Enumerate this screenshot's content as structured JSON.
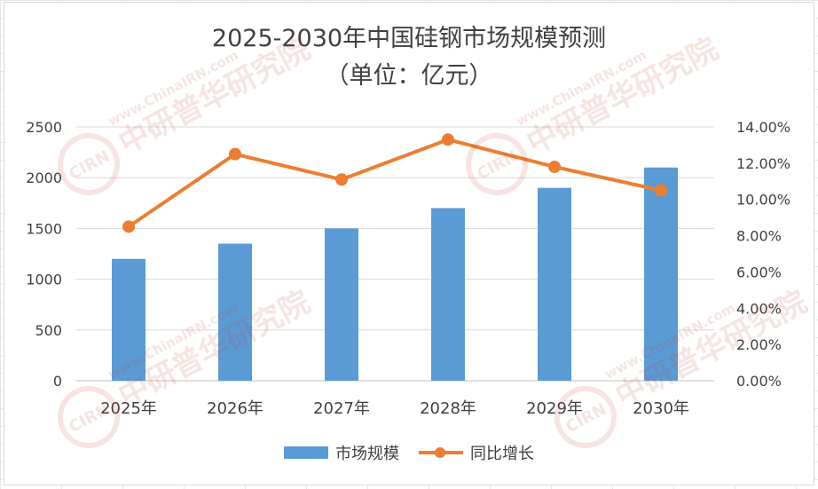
{
  "chart_data": {
    "type": "bar",
    "title": "2025-2030年中国硅钢市场规模预测",
    "subtitle": "（单位：亿元）",
    "categories": [
      "2025年",
      "2026年",
      "2027年",
      "2028年",
      "2029年",
      "2030年"
    ],
    "series": [
      {
        "name": "市场规模",
        "type": "bar",
        "axis": "left",
        "color": "#5b9bd5",
        "values": [
          1200,
          1350,
          1500,
          1700,
          1900,
          2100
        ]
      },
      {
        "name": "同比增长",
        "type": "line",
        "axis": "right",
        "color": "#ed7d31",
        "values": [
          0.085,
          0.125,
          0.111,
          0.133,
          0.118,
          0.105
        ]
      }
    ],
    "y_left": {
      "min": 0,
      "max": 2500,
      "ticks": [
        "0",
        "500",
        "1000",
        "1500",
        "2000",
        "2500"
      ]
    },
    "y_right": {
      "min": 0,
      "max": 0.14,
      "ticks": [
        "0.00%",
        "2.00%",
        "4.00%",
        "6.00%",
        "8.00%",
        "10.00%",
        "12.00%",
        "14.00%"
      ]
    },
    "legend_position": "bottom",
    "grid": true
  },
  "watermark": {
    "text_cn": "中研普华研究院",
    "text_url": "www.ChinaIRN.com",
    "logo_text": "CIRN",
    "color": "#c0392b"
  }
}
